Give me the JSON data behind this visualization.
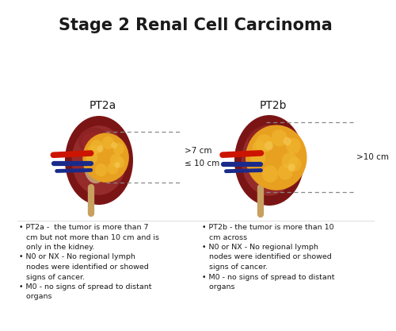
{
  "title": "Stage 2 Renal Cell Carcinoma",
  "title_fontsize": 15,
  "title_fontweight": "bold",
  "background_color": "#ffffff",
  "left_label": "PT2a",
  "right_label": "PT2b",
  "left_annotation": ">7 cm\n≤ 10 cm",
  "right_annotation": ">10 cm",
  "left_bullets": [
    "PT2a -  the tumor is more than 7\n   cm but not more than 10 cm and is\n   only in the kidney.",
    "N0 or NX - No regional lymph\n   nodes were identified or showed\n   signs of cancer.",
    "M0 - no signs of spread to distant\n   organs"
  ],
  "right_bullets": [
    "PT2b - the tumor is more than 10\n   cm across",
    "N0 or NX - No regional lymph\n   nodes were identified or showed\n   signs of cancer.",
    "M0 - no signs of spread to distant\n   organs"
  ],
  "bullet_fontsize": 6.8,
  "label_fontsize": 10,
  "annotation_fontsize": 7.5,
  "kidney_outer": "#7B1515",
  "kidney_inner": "#9B3030",
  "kidney_lobe1": "#8B2525",
  "kidney_lobe2": "#A03535",
  "hilum_color": "#C8A878",
  "hilum_detail": "#D4B888",
  "tumor_base": "#E8A020",
  "tumor_lobe": "#F0B830",
  "tumor_highlight": "#F8D060",
  "vessel_red": "#CC1500",
  "vessel_blue": "#1A2A8A",
  "ureter_color": "#C8A060",
  "dashed_color": "#888888",
  "text_color": "#1a1a1a",
  "separator_color": "#dddddd"
}
